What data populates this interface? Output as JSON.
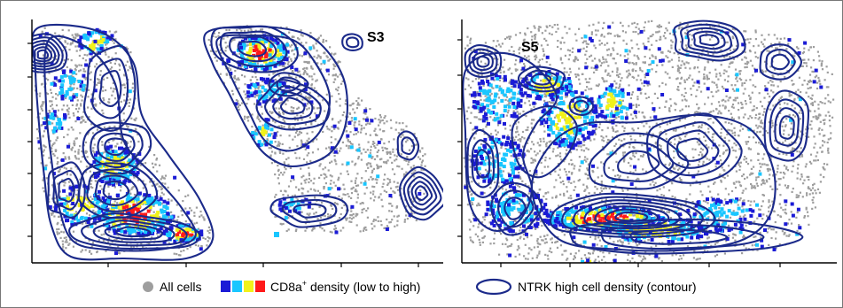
{
  "chart_data": [
    {
      "type": "scatter",
      "panel": "S3",
      "title": "S3",
      "series": [
        {
          "name": "All cells",
          "color": "#9e9e9e"
        },
        {
          "name": "CD8a+ density (low to high)",
          "colors": [
            "#1b1bd6",
            "#19c6ff",
            "#f2f21a",
            "#ff1a1a"
          ]
        },
        {
          "name": "NTRK high cell density (contour)",
          "color": "#1b2a8a"
        }
      ],
      "grid": false,
      "ticks_labeled": false
    },
    {
      "type": "scatter",
      "panel": "S5",
      "title": "S5",
      "series": [
        {
          "name": "All cells",
          "color": "#9e9e9e"
        },
        {
          "name": "CD8a+ density (low to high)",
          "colors": [
            "#1b1bd6",
            "#19c6ff",
            "#f2f21a",
            "#ff1a1a"
          ]
        },
        {
          "name": "NTRK high cell density (contour)",
          "color": "#1b2a8a"
        }
      ],
      "grid": false,
      "ticks_labeled": false
    }
  ],
  "legend": {
    "all_cells": "All cells",
    "cd8_prefix": "CD8a",
    "cd8_sup": "+",
    "cd8_suffix": " density (low to high)",
    "ntrk": "NTRK high cell density (contour)",
    "cd8_colors": [
      "#1b1bd6",
      "#19c6ff",
      "#f2f21a",
      "#ff1a1a"
    ],
    "gray": "#9e9e9e",
    "contour": "#1b2a8a"
  }
}
